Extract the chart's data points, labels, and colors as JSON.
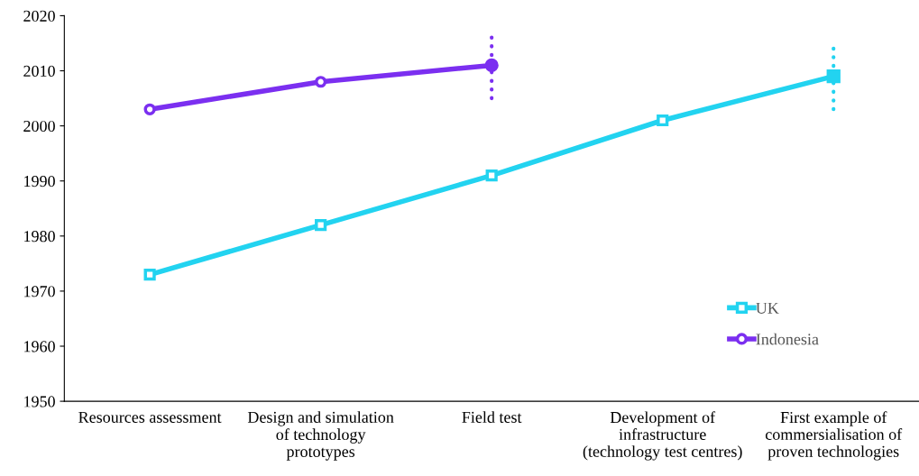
{
  "chart_data": {
    "type": "line",
    "categories": [
      "Resources assessment",
      "Design and simulation\nof technology\nprototypes",
      "Field test",
      "Development of\ninfrastructure\n(technology test centres)",
      "First example of\ncommersialisation of\nproven technologies"
    ],
    "series": [
      {
        "name": "UK",
        "color": "#22d3f0",
        "marker": "square",
        "values": [
          1973,
          1982,
          1991,
          2001,
          2009
        ],
        "errors": [
          null,
          null,
          null,
          null,
          6
        ]
      },
      {
        "name": "Indonesia",
        "color": "#7b2ff0",
        "marker": "circle",
        "values": [
          2003,
          2008,
          2011,
          null,
          null
        ],
        "errors": [
          null,
          null,
          6,
          null,
          null
        ]
      }
    ],
    "ylim": [
      1950,
      2020
    ],
    "yticks": [
      1950,
      1960,
      1970,
      1980,
      1990,
      2000,
      2010,
      2020
    ],
    "grid": false,
    "legend": "bottom right",
    "line_style": "solid"
  }
}
